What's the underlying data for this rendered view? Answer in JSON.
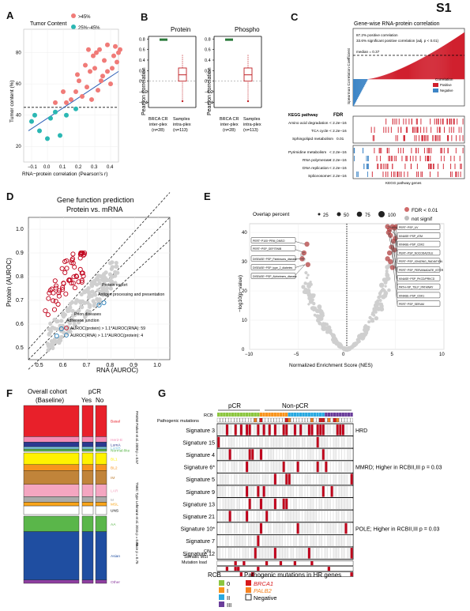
{
  "page_label": "S1",
  "panels": {
    "A": {
      "label": "A",
      "legend_title": "Tumor Content",
      "legend_items": [
        ">45%",
        "25%~45%"
      ],
      "colors": {
        "high": "#f07b78",
        "low": "#2ab7b3",
        "fit": "#2d5fb6"
      },
      "xlabel": "RNA−protein correlation (Pearson's r)",
      "ylabel": "Tumor content (%)",
      "xticks": [
        "−0.1",
        "0.0",
        "0.1",
        "0.2",
        "0.3",
        "0.4"
      ],
      "yticks": [
        "20",
        "40",
        "60",
        "80"
      ]
    },
    "B": {
      "label": "B",
      "protein_title": "Protein",
      "phospho_title": "Phospho",
      "ylabel": "Pearson correlation",
      "yticks": [
        "−0.4",
        "−0.2",
        "0",
        "0.2",
        "0.4",
        "0.6",
        "0.8"
      ],
      "cat1": [
        "BRCA CR",
        "inter-plex",
        "(n=28)"
      ],
      "cat2": [
        "Samples",
        "intra-plex",
        "(n=113)"
      ]
    },
    "C": {
      "label": "C",
      "title": "Gene-wise RNA-protein correlation",
      "stat1": "87.2% positive correlation",
      "stat2": "33.6% significant positive correlation (adj. p < 0.01)",
      "median": "median = 0.37",
      "ylabel": "Spearman Correlation Coefficient",
      "legend_title": "Correlation",
      "legend_items": [
        "Positive",
        "Negative"
      ],
      "kegg_header": "KEGG pathway",
      "fdr_header": "FDR",
      "pathways_top": [
        {
          "name": "Amino acid degradation",
          "fdr": "< 2.2e−16"
        },
        {
          "name": "TCA cycle",
          "fdr": "< 2.2e−16"
        },
        {
          "name": "Sphingolipid metabolism",
          "fdr": "0.01"
        }
      ],
      "pathways_bottom": [
        {
          "name": "Pyrimidine metabolism",
          "fdr": "< 2.2e−16"
        },
        {
          "name": "RNA polymerase",
          "fdr": "< 2.2e−16"
        },
        {
          "name": "DNA replication",
          "fdr": "< 2.2e−16"
        },
        {
          "name": "Spliceosome",
          "fdr": "< 2.2e−16"
        }
      ],
      "footer": "KEGG pathway genes"
    },
    "D": {
      "label": "D",
      "title1": "Gene function prediction",
      "title2": "Protein vs. mRNA",
      "xlabel": "RNA (AUROC)",
      "ylabel": "Protein (AUROC)",
      "ticks": [
        "0.5",
        "0.6",
        "0.7",
        "0.8",
        "0.9",
        "1.0"
      ],
      "annotations": [
        "Protein export",
        "Antigen processing and presentation",
        "Prion diseases",
        "Adherens junction"
      ],
      "legend": [
        "AUROC(protein) > 1.1*AUROC(RNA): 59",
        "AUROC(RNA) > 1.1*AUROC(protein): 4"
      ]
    },
    "E": {
      "label": "E",
      "legend_title": "Overlap percent",
      "sizes": [
        "25",
        "50",
        "75",
        "100"
      ],
      "fdr_legend": [
        "FDR < 0.01",
        "not signif"
      ],
      "xlabel": "Normalized Enrichment Score (NES)",
      "ylabel": "−log10(p−value)",
      "xticks": [
        "−10",
        "−5",
        "0",
        "5",
        "10"
      ],
      "yticks": [
        "0",
        "10",
        "20",
        "30",
        "40"
      ],
      "left_labels": [
        "PERT−P100−PRM_DMSO",
        "PERT−PSP_GEFITINIB",
        "DISEASE−PSP_Parkinsons_disease",
        "DISEASE−PSP_type_2_diabetes",
        "DISEASE−PSP_Alzheimers_disease"
      ],
      "right_labels": [
        "PERT−PSP_UV",
        "KINASE−PSP_ATM",
        "KINASE−PSP_CDK2",
        "PERT−PSP_NOCODAZOLE",
        "PERT−PSP_IONIZING_RADIATION",
        "PERT−PSP_PERVANADATE_ISTER",
        "KINASE−PSP_PKCD/PRKCD",
        "PATH−NP_TSLP_PATHWAY",
        "KINASE−PSP_CDK1",
        "PERT−PSP_SERUM"
      ]
    },
    "F": {
      "label": "F",
      "overall_title": [
        "Overall cohort",
        "(Baseline)"
      ],
      "pcr_title": "pCR",
      "pcr_cols": [
        "Yes",
        "No"
      ],
      "subtypes": [
        "Basal",
        "Her2-E",
        "LumA",
        "LumB",
        "Normal-like",
        "BL1",
        "BL2",
        "IM",
        "LAR",
        "M",
        "MSL",
        "UNS",
        "AA",
        "Asian",
        "Other"
      ],
      "group_labels": [
        "PAM50 Parker et al. 2009 p = 0.57",
        "TNBC Type Lehmann et al. 2016 p = 0.46",
        "Race p = 0.75"
      ]
    },
    "G": {
      "label": "G",
      "pcr_header": "pCR",
      "nonpcr_header": "Non-pCR",
      "top_rows": [
        "RCB",
        "Pathogenic mutations"
      ],
      "signatures": [
        "Signature 3",
        "Signature 15",
        "Signature 4",
        "Signature 6*",
        "Signature 5",
        "Signature 9",
        "Signature 13",
        "Signature 21",
        "Signature 10*",
        "Signature 7",
        "Signature 12"
      ],
      "notes": [
        "HRD",
        "",
        "",
        "MMRD; Higher in RCBII,III p = 0.03",
        "",
        "",
        "",
        "",
        "POLE; Higher in RCBII,III p = 0.03",
        "",
        ""
      ],
      "bottom_rows": [
        "CIN",
        "Somatic MSI",
        "Mutation load"
      ],
      "rcb_legend_title": "RCB",
      "rcb_levels": [
        "0",
        "I",
        "II",
        "III"
      ],
      "rcb_colors": [
        "#8cc63f",
        "#f7941d",
        "#29a9e0",
        "#6a3d9a"
      ],
      "mut_legend_title": "Pathogenic mutations in HR genes",
      "mut_items": [
        "BRCA1",
        "PALB2",
        "Negative"
      ],
      "mut_colors": [
        "#d7191c",
        "#f58220",
        "#ffffff"
      ]
    }
  }
}
